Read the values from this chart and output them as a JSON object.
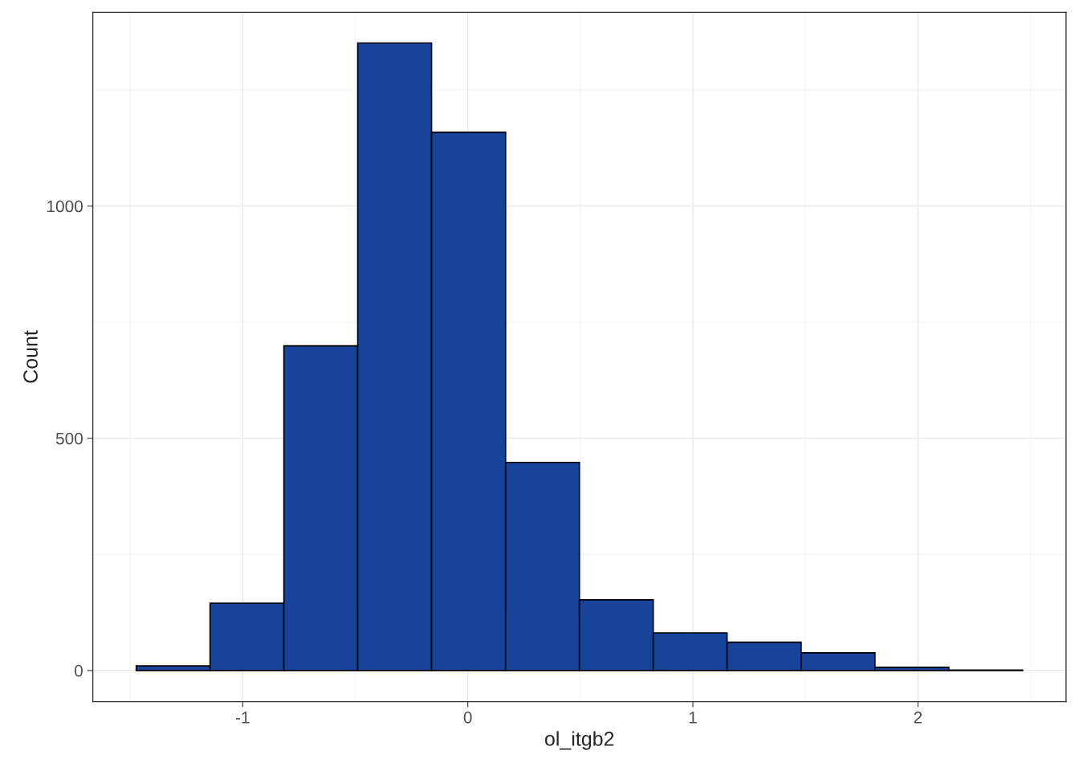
{
  "chart_data": {
    "type": "histogram",
    "xlabel": "ol_itgb2",
    "ylabel": "Count",
    "color": "#17439a",
    "bins": [
      -1.473,
      -1.145,
      -0.817,
      -0.489,
      -0.161,
      0.168,
      0.496,
      0.824,
      1.152,
      1.481,
      1.809,
      2.137,
      2.465
    ],
    "values": [
      10,
      145,
      699,
      1351,
      1159,
      448,
      152,
      81,
      61,
      38,
      7,
      1
    ],
    "xlim": [
      -1.666,
      2.658
    ],
    "ylim": [
      -67,
      1417
    ],
    "xticks": [
      {
        "value": -1,
        "label": "-1"
      },
      0,
      1,
      2
    ],
    "yticks": [
      0,
      500,
      1000
    ],
    "grid": true
  }
}
